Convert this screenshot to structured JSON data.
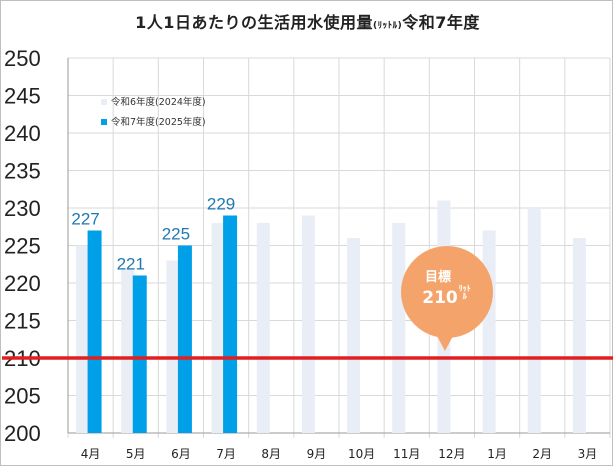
{
  "chart_data": {
    "type": "bar",
    "title": "1人1日あたりの生活用水使用量",
    "title_unit": "(ﾘｯﾄﾙ)",
    "title_suffix": "令和7年度",
    "categories": [
      "4月",
      "5月",
      "6月",
      "7月",
      "8月",
      "9月",
      "10月",
      "11月",
      "12月",
      "1月",
      "2月",
      "3月"
    ],
    "series": [
      {
        "name": "令和6年度(2024年度)",
        "color": "#e8edf6",
        "values": [
          225,
          222,
          223,
          228,
          228,
          229,
          226,
          228,
          231,
          227,
          230,
          226
        ]
      },
      {
        "name": "令和7年度(2025年度)",
        "color": "#00a0e9",
        "values": [
          227,
          221,
          225,
          229,
          null,
          null,
          null,
          null,
          null,
          null,
          null,
          null
        ],
        "data_labels": [
          "227",
          "221",
          "225",
          "229"
        ]
      }
    ],
    "ylim": [
      200,
      250
    ],
    "yticks": [
      200,
      205,
      210,
      215,
      220,
      225,
      230,
      235,
      240,
      245,
      250
    ],
    "grid": true,
    "legend_position": "top-left",
    "target": {
      "value": 210,
      "color": "#e02020",
      "label": "目標",
      "value_text": "210",
      "unit_text": "ﾘｯﾄﾙ"
    },
    "callout_color": "#f4a46a"
  }
}
